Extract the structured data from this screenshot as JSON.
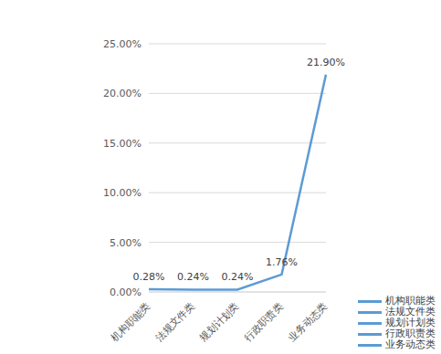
{
  "chart_data": {
    "type": "line",
    "categories": [
      "机构职能类",
      "法规文件类",
      "规划计划类",
      "行政职责类",
      "业务动态类"
    ],
    "values": [
      0.28,
      0.24,
      0.24,
      1.76,
      21.9
    ],
    "value_labels": [
      "0.28%",
      "0.24%",
      "0.24%",
      "1.76%",
      "21.90%"
    ],
    "color": "#5b9bd5",
    "ylim": [
      0,
      25
    ],
    "yticks": [
      {
        "value": 0,
        "label": "0.00%"
      },
      {
        "value": 5,
        "label": "5.00%"
      },
      {
        "value": 10,
        "label": "10.00%"
      },
      {
        "value": 15,
        "label": "15.00%"
      },
      {
        "value": 20,
        "label": "20.00%"
      },
      {
        "value": 25,
        "label": "25.00%"
      }
    ],
    "grid": true,
    "data_labels": true,
    "legend": "lower right"
  }
}
